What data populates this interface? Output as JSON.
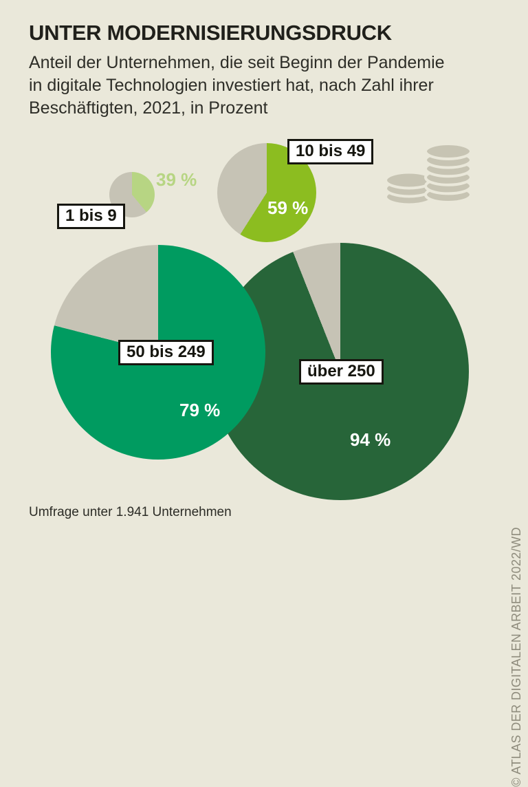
{
  "header": {
    "title": "UNTER MODERNISIERUNGSDRUCK",
    "subtitle": "Anteil der Unternehmen, die seit Beginn der Pandemie\nin digitale Technologien investiert hat, nach Zahl ihrer\nBeschäftigten, 2021, in Prozent"
  },
  "chart_data": {
    "type": "pie",
    "title": "UNTER MODERNISIERUNGSDRUCK",
    "subtitle": "Anteil der Unternehmen, die seit Beginn der Pandemie in digitale Technologien investiert hat, nach Zahl ihrer Beschäftigten, 2021, in Prozent",
    "unit": "Prozent",
    "year": "2021",
    "value_suffix": " %",
    "legend": "none",
    "start_angle": "top, clockwise",
    "pies": [
      {
        "label": "1 bis 9",
        "value": 39,
        "value_label": "39 %",
        "color": "#b7d583",
        "value_color": "#b7d583",
        "radius_px": 33
      },
      {
        "label": "10 bis 49",
        "value": 59,
        "value_label": "59 %",
        "color": "#8cbd20",
        "value_color": "#ffffff",
        "radius_px": 72
      },
      {
        "label": "50 bis 249",
        "value": 79,
        "value_label": "79 %",
        "color": "#009b60",
        "value_color": "#ffffff",
        "radius_px": 156
      },
      {
        "label": "über 250",
        "value": 94,
        "value_label": "94 %",
        "color": "#276539",
        "value_color": "#ffffff",
        "radius_px": 187
      }
    ],
    "note": "Umfrage unter 1.941 Unternehmen"
  },
  "footer": {
    "note": "Umfrage unter 1.941 Unternehmen",
    "credit": "© ATLAS DER DIGITALEN ARBEIT 2022/WD"
  },
  "icons": {
    "coins": "coin-stacks-icon"
  },
  "colors": {
    "background": "#eae8da",
    "slice_gray": "#c6c3b5",
    "coin_gray": "#c7c4b3",
    "title_text": "#20201b",
    "body_text": "#2e2e28",
    "credit_text": "#8e8b7c"
  }
}
